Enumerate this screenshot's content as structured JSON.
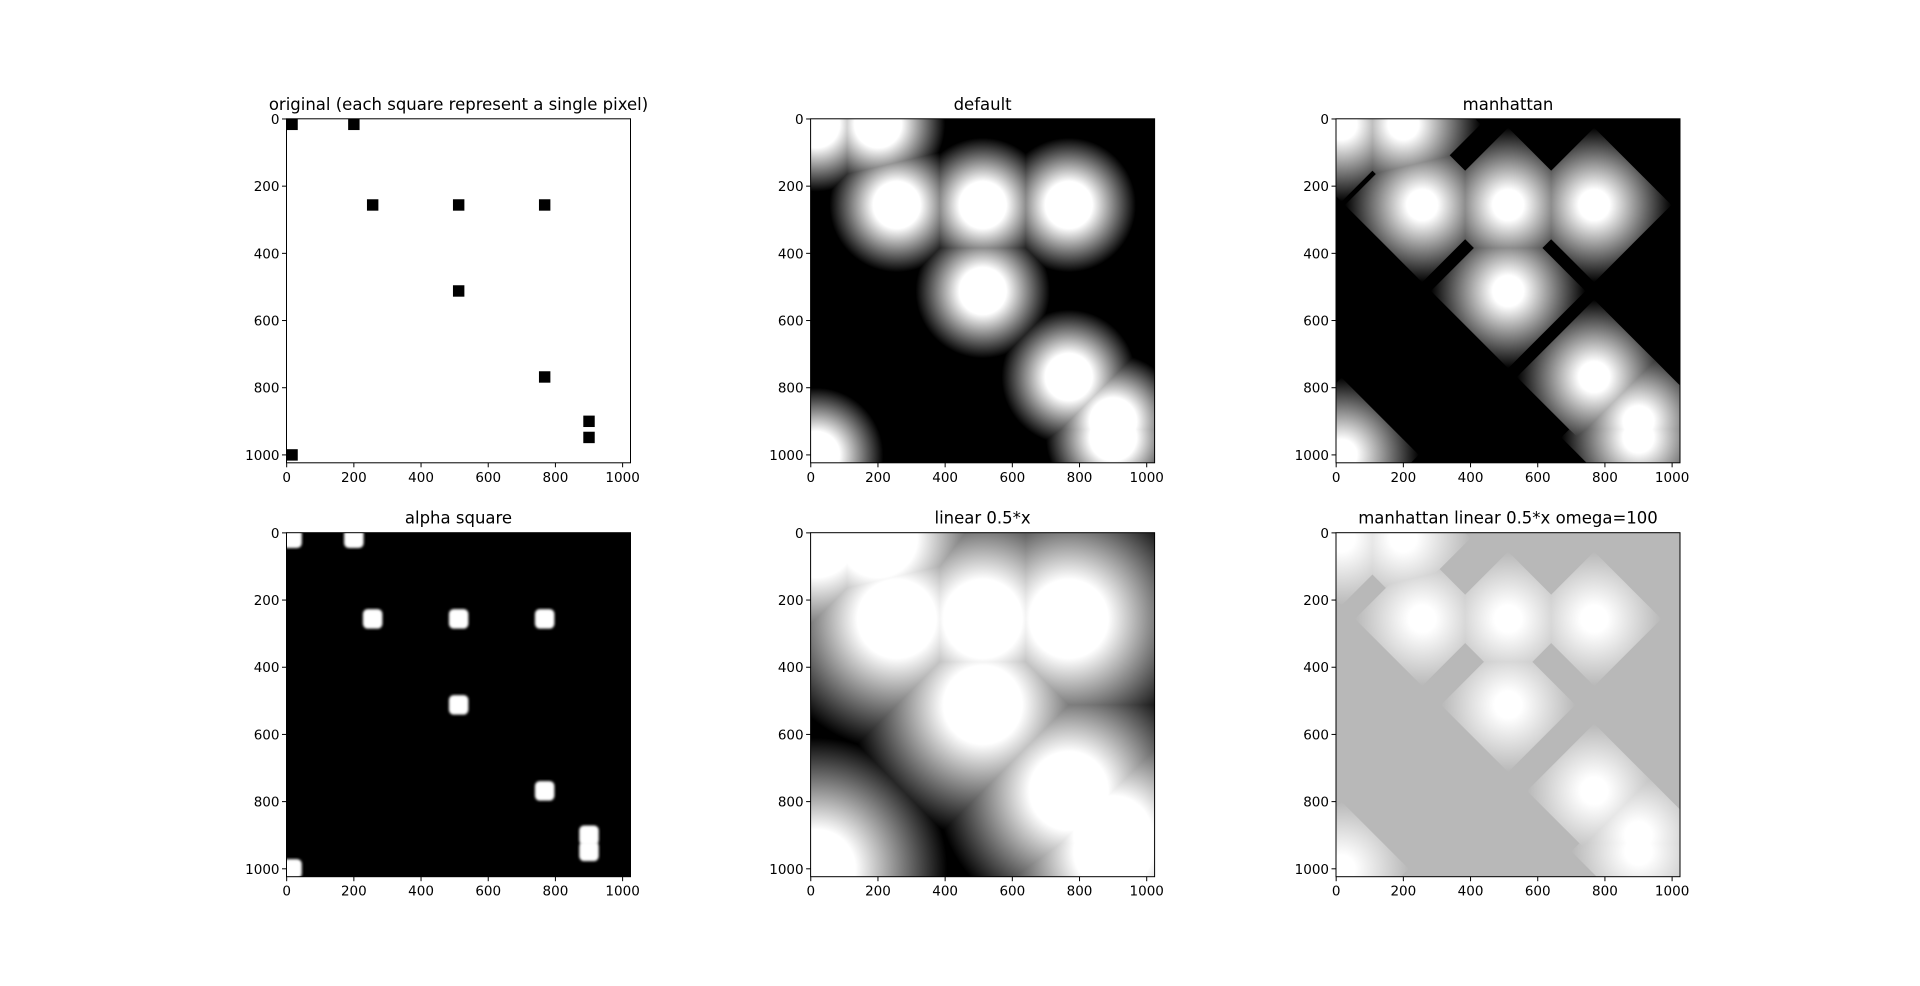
{
  "chart_data": [
    {
      "type": "image",
      "title": "original (each square represent a single pixel)",
      "style": "squares",
      "background": "#ffffff",
      "points": [
        [
          16,
          16
        ],
        [
          200,
          16
        ],
        [
          256,
          256
        ],
        [
          512,
          256
        ],
        [
          768,
          256
        ],
        [
          512,
          512
        ],
        [
          768,
          768
        ],
        [
          900,
          900
        ],
        [
          900,
          948
        ],
        [
          16,
          1000
        ]
      ],
      "xlim": [
        -0.5,
        1023.5
      ],
      "ylim": [
        1023.5,
        -0.5
      ],
      "xticks": [
        0,
        200,
        400,
        600,
        800,
        1000
      ],
      "yticks": [
        0,
        200,
        400,
        600,
        800,
        1000
      ]
    },
    {
      "type": "image",
      "title": "default",
      "style": "euclidean",
      "background": "#000000",
      "points": [
        [
          16,
          16
        ],
        [
          200,
          16
        ],
        [
          256,
          256
        ],
        [
          512,
          256
        ],
        [
          768,
          256
        ],
        [
          512,
          512
        ],
        [
          768,
          768
        ],
        [
          900,
          900
        ],
        [
          900,
          948
        ],
        [
          16,
          1000
        ]
      ],
      "xlim": [
        -0.5,
        1023.5
      ],
      "ylim": [
        1023.5,
        -0.5
      ],
      "xticks": [
        0,
        200,
        400,
        600,
        800,
        1000
      ],
      "yticks": [
        0,
        200,
        400,
        600,
        800,
        1000
      ]
    },
    {
      "type": "image",
      "title": "manhattan",
      "style": "manhattan",
      "background": "#000000",
      "points": [
        [
          16,
          16
        ],
        [
          200,
          16
        ],
        [
          256,
          256
        ],
        [
          512,
          256
        ],
        [
          768,
          256
        ],
        [
          512,
          512
        ],
        [
          768,
          768
        ],
        [
          900,
          900
        ],
        [
          900,
          948
        ],
        [
          16,
          1000
        ]
      ],
      "xlim": [
        -0.5,
        1023.5
      ],
      "ylim": [
        1023.5,
        -0.5
      ],
      "xticks": [
        0,
        200,
        400,
        600,
        800,
        1000
      ],
      "yticks": [
        0,
        200,
        400,
        600,
        800,
        1000
      ]
    },
    {
      "type": "image",
      "title": "alpha square",
      "style": "rounded",
      "background": "#000000",
      "points": [
        [
          16,
          16
        ],
        [
          200,
          16
        ],
        [
          256,
          256
        ],
        [
          512,
          256
        ],
        [
          768,
          256
        ],
        [
          512,
          512
        ],
        [
          768,
          768
        ],
        [
          900,
          900
        ],
        [
          900,
          948
        ],
        [
          16,
          1000
        ]
      ],
      "xlim": [
        -0.5,
        1023.5
      ],
      "ylim": [
        1023.5,
        -0.5
      ],
      "xticks": [
        0,
        200,
        400,
        600,
        800,
        1000
      ],
      "yticks": [
        0,
        200,
        400,
        600,
        800,
        1000
      ]
    },
    {
      "type": "image",
      "title": "linear 0.5*x",
      "style": "euclidean-wide",
      "background": "#000000",
      "points": [
        [
          16,
          16
        ],
        [
          200,
          16
        ],
        [
          256,
          256
        ],
        [
          512,
          256
        ],
        [
          768,
          256
        ],
        [
          512,
          512
        ],
        [
          768,
          768
        ],
        [
          900,
          900
        ],
        [
          900,
          948
        ],
        [
          16,
          1000
        ]
      ],
      "xlim": [
        -0.5,
        1023.5
      ],
      "ylim": [
        1023.5,
        -0.5
      ],
      "xticks": [
        0,
        200,
        400,
        600,
        800,
        1000
      ],
      "yticks": [
        0,
        200,
        400,
        600,
        800,
        1000
      ]
    },
    {
      "type": "image",
      "title": "manhattan linear 0.5*x omega=100",
      "style": "manhattan-gray",
      "background": "#b8b8b8",
      "points": [
        [
          16,
          16
        ],
        [
          200,
          16
        ],
        [
          256,
          256
        ],
        [
          512,
          256
        ],
        [
          768,
          256
        ],
        [
          512,
          512
        ],
        [
          768,
          768
        ],
        [
          900,
          900
        ],
        [
          900,
          948
        ],
        [
          16,
          1000
        ]
      ],
      "xlim": [
        -0.5,
        1023.5
      ],
      "ylim": [
        1023.5,
        -0.5
      ],
      "xticks": [
        0,
        200,
        400,
        600,
        800,
        1000
      ],
      "yticks": [
        0,
        200,
        400,
        600,
        800,
        1000
      ]
    }
  ]
}
